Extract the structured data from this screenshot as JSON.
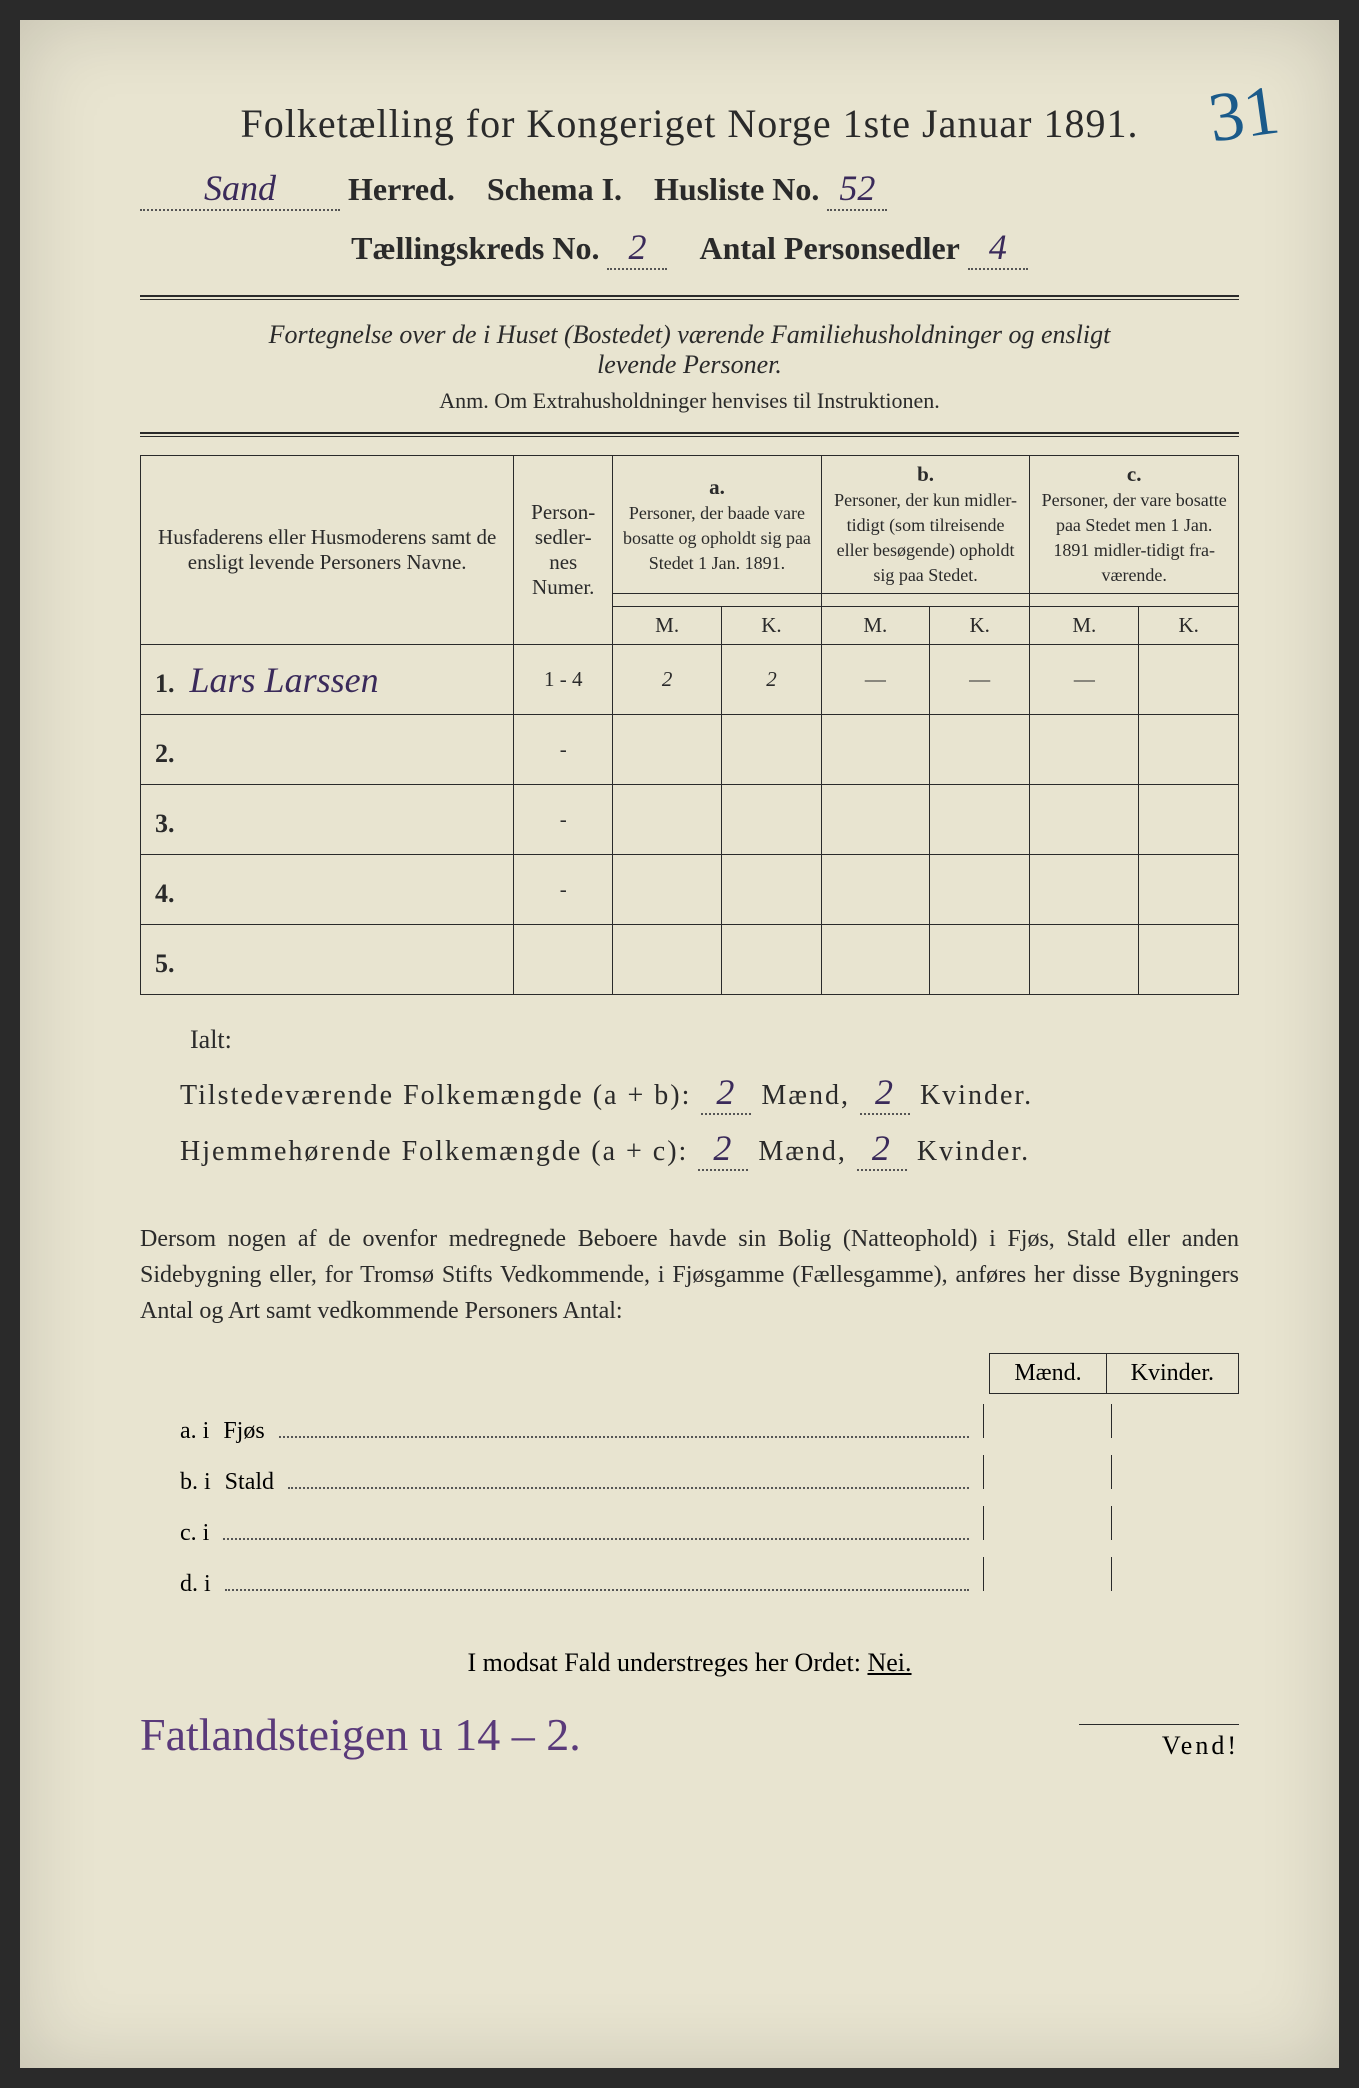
{
  "header": {
    "title_prefix": "Folketælling for Kongeriget Norge 1ste Januar",
    "year": "1891.",
    "herred_value": "Sand",
    "herred_label": "Herred.",
    "schema_label": "Schema I.",
    "husliste_label": "Husliste No.",
    "husliste_value": "52",
    "kreds_label": "Tællingskreds No.",
    "kreds_value": "2",
    "personsedler_label": "Antal Personsedler",
    "personsedler_value": "4",
    "corner_annotation": "31"
  },
  "subtitle": {
    "line1": "Fortegnelse over de i Huset (Bostedet) værende Familiehusholdninger og ensligt",
    "line2": "levende Personer.",
    "anm": "Anm.  Om Extrahusholdninger henvises til Instruktionen."
  },
  "table": {
    "col_name": "Husfaderens eller Husmoderens samt de ensligt levende Personers Navne.",
    "col_numer": "Person-sedler-nes Numer.",
    "col_a_label": "a.",
    "col_a_text": "Personer, der baade vare bosatte og opholdt sig paa Stedet 1 Jan. 1891.",
    "col_b_label": "b.",
    "col_b_text": "Personer, der kun midler-tidigt (som tilreisende eller besøgende) opholdt sig paa Stedet.",
    "col_c_label": "c.",
    "col_c_text": "Personer, der vare bosatte paa Stedet men 1 Jan. 1891 midler-tidigt fra-værende.",
    "m": "M.",
    "k": "K.",
    "rows": [
      {
        "num": "1.",
        "name": "Lars Larssen",
        "sedler": "1 - 4",
        "am": "2",
        "ak": "2",
        "bm": "—",
        "bk": "—",
        "cm": "—",
        "ck": ""
      },
      {
        "num": "2.",
        "name": "",
        "sedler": "-",
        "am": "",
        "ak": "",
        "bm": "",
        "bk": "",
        "cm": "",
        "ck": ""
      },
      {
        "num": "3.",
        "name": "",
        "sedler": "-",
        "am": "",
        "ak": "",
        "bm": "",
        "bk": "",
        "cm": "",
        "ck": ""
      },
      {
        "num": "4.",
        "name": "",
        "sedler": "-",
        "am": "",
        "ak": "",
        "bm": "",
        "bk": "",
        "cm": "",
        "ck": ""
      },
      {
        "num": "5.",
        "name": "",
        "sedler": "",
        "am": "",
        "ak": "",
        "bm": "",
        "bk": "",
        "cm": "",
        "ck": ""
      }
    ]
  },
  "totals": {
    "ialt": "Ialt:",
    "tilstede_label": "Tilstedeværende Folkemængde (a + b):",
    "hjemme_label": "Hjemmehørende Folkemængde (a + c):",
    "maend": "Mænd,",
    "kvinder": "Kvinder.",
    "tilstede_m": "2",
    "tilstede_k": "2",
    "hjemme_m": "2",
    "hjemme_k": "2"
  },
  "paragraph": {
    "text": "Dersom nogen af de ovenfor medregnede Beboere havde sin Bolig (Natteophold) i Fjøs, Stald eller anden Sidebygning eller, for Tromsø Stifts Vedkommende, i Fjøsgamme (Fællesgamme), anføres her disse Bygningers Antal og Art samt vedkommende Personers Antal:",
    "maend": "Mænd.",
    "kvinder": "Kvinder."
  },
  "buildings": {
    "a": "a.  i",
    "a_label": "Fjøs",
    "b": "b.  i",
    "b_label": "Stald",
    "c": "c.  i",
    "d": "d.  i"
  },
  "nei": {
    "text": "I modsat Fald understreges her Ordet:",
    "word": "Nei."
  },
  "footer": {
    "vend": "Vend!",
    "handwritten": "Fatlandsteigen u 14 – 2."
  }
}
